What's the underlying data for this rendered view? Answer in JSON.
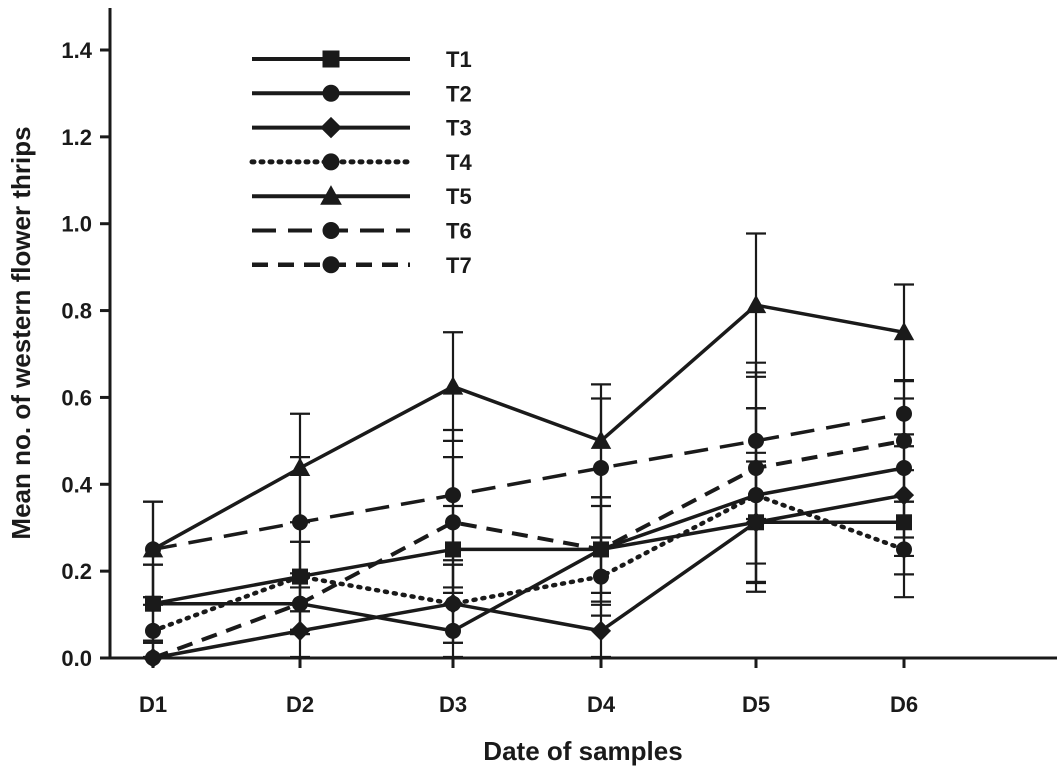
{
  "chart_data": {
    "type": "line",
    "title": "",
    "xlabel": "Date of samples",
    "ylabel": "Mean no. of western flower thrips",
    "categories": [
      "D1",
      "D2",
      "D3",
      "D4",
      "D5",
      "D6"
    ],
    "ylim": [
      0,
      1.4
    ],
    "yticks": [
      "0.0",
      "0.2",
      "0.4",
      "0.6",
      "0.8",
      "1.0",
      "1.2",
      "1.4"
    ],
    "ytick_values": [
      0,
      0.2,
      0.4,
      0.6,
      0.8,
      1.0,
      1.2,
      1.4
    ],
    "grid": false,
    "legend_position": "top-left",
    "color": "#1a1a1a",
    "series": [
      {
        "name": "T1",
        "marker": "square",
        "line": "solid",
        "values": [
          0.125,
          0.1875,
          0.25,
          0.25,
          0.3125,
          0.3125
        ],
        "error": [
          0.09,
          0.08,
          0.1,
          0.1,
          0.14,
          0.12
        ]
      },
      {
        "name": "T2",
        "marker": "circle",
        "line": "solid",
        "values": [
          0.125,
          0.125,
          0.0625,
          0.25,
          0.375,
          0.4375
        ],
        "error": [
          0.09,
          0.07,
          0.06,
          0.12,
          0.2,
          0.16
        ]
      },
      {
        "name": "T3",
        "marker": "diamond",
        "line": "solid",
        "values": [
          0.0,
          0.0625,
          0.125,
          0.0625,
          0.3125,
          0.375
        ],
        "error": [
          0.04,
          0.06,
          0.09,
          0.06,
          0.16,
          0.14
        ]
      },
      {
        "name": "T4",
        "marker": "circle",
        "line": "dotted",
        "values": [
          0.0625,
          0.1875,
          0.125,
          0.1875,
          0.375,
          0.25
        ],
        "error": [
          0.06,
          0.08,
          0.09,
          0.09,
          0.2,
          0.11
        ]
      },
      {
        "name": "T5",
        "marker": "triangle",
        "line": "solid",
        "values": [
          0.25,
          0.4375,
          0.625,
          0.5,
          0.8125,
          0.75
        ],
        "error": [
          0.11,
          0.125,
          0.125,
          0.13,
          0.165,
          0.11
        ]
      },
      {
        "name": "T6",
        "marker": "circle",
        "line": "long-dash",
        "values": [
          0.25,
          0.3125,
          0.375,
          0.4375,
          0.5,
          0.5625
        ],
        "error": [
          0.11,
          0.15,
          0.15,
          0.16,
          0.18,
          0.075
        ]
      },
      {
        "name": "T7",
        "marker": "circle",
        "line": "dash",
        "values": [
          0.0,
          0.125,
          0.3125,
          0.25,
          0.4375,
          0.5
        ],
        "error": [
          0.04,
          0.06,
          0.15,
          0.12,
          0.22,
          0.14
        ]
      }
    ]
  }
}
